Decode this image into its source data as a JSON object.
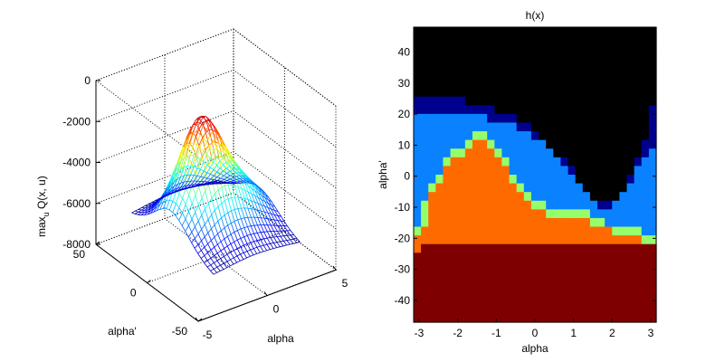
{
  "chart_data": [
    {
      "type": "surface3d",
      "zlabel_main": "max",
      "zlabel_sub": "u",
      "zlabel_tail": " Q(x, u)",
      "xlabel": "alpha",
      "ylabel": "alpha'",
      "xlim": [
        -5,
        5
      ],
      "ylim": [
        -50,
        50
      ],
      "zlim": [
        -8000,
        0
      ],
      "x_ticks": [
        "-5",
        "0",
        "5"
      ],
      "y_ticks": [
        "-50",
        "0",
        "50"
      ],
      "z_ticks": [
        "0",
        "-2000",
        "-4000",
        "-6000",
        "-8000"
      ],
      "x_tick_values": [
        -5,
        0,
        5
      ],
      "y_tick_values": [
        -50,
        0,
        50
      ],
      "z_tick_values": [
        0,
        -2000,
        -4000,
        -6000,
        -8000
      ],
      "x_range": [
        -3.14,
        3.14
      ],
      "y_range": [
        -40,
        40
      ],
      "surface_peak": -800,
      "surface_min": -6700,
      "grid_size": 27,
      "colormap": "jet"
    },
    {
      "type": "heatmap",
      "title": "h(x)",
      "xlabel": "alpha",
      "ylabel": "alpha'",
      "xlim": [
        -3.14,
        3.14
      ],
      "ylim": [
        -47,
        48
      ],
      "x_ticks": [
        "-3",
        "-2",
        "-1",
        "0",
        "1",
        "2",
        "3"
      ],
      "y_ticks": [
        "40",
        "30",
        "20",
        "10",
        "0",
        "-10",
        "-20",
        "-30",
        "-40"
      ],
      "x_tick_values": [
        -3,
        -2,
        -1,
        0,
        1,
        2,
        3
      ],
      "y_tick_values": [
        40,
        30,
        20,
        10,
        0,
        -10,
        -20,
        -30,
        -40
      ],
      "colors": [
        "#7f0000",
        "#ff6a00",
        "#96fe6a",
        "#0a82ff",
        "#00008f"
      ],
      "columns": 33,
      "rows": 34,
      "boundaries": [
        [
          -24,
          -21,
          -22,
          -22,
          -22,
          -22,
          -22,
          -22,
          -22,
          -22,
          -22,
          -22,
          -22,
          -22,
          -22,
          -22,
          -22,
          -22,
          -22,
          -22,
          -22,
          -22,
          -22,
          -22,
          -22,
          -22,
          -22,
          -22,
          -22,
          -22,
          -22,
          -22,
          -22
        ],
        [
          -20,
          -15,
          -6,
          -2,
          2,
          5,
          7,
          9,
          11,
          11,
          9,
          6,
          2,
          -3,
          -6,
          -8,
          -10,
          -12,
          -14,
          -14,
          -14,
          -14,
          -14,
          -14,
          -16,
          -16,
          -17,
          -18,
          -18,
          -19,
          -20,
          -22,
          -22
        ],
        [
          -15,
          -9,
          -3,
          1,
          5,
          8,
          10,
          12,
          14,
          15,
          13,
          10,
          6,
          1,
          -2,
          -5,
          -7,
          -9,
          -11,
          -12,
          -12,
          -12,
          -12,
          -12,
          -13,
          -14,
          -15,
          -16,
          -16,
          -16,
          -17,
          -18,
          -18
        ],
        [
          21,
          21,
          21,
          21,
          21,
          21,
          21,
          20,
          19,
          19,
          18,
          18,
          17,
          16,
          15,
          14,
          13,
          11,
          9,
          6,
          3,
          0,
          -2,
          -5,
          -8,
          -10,
          -10,
          -8,
          -5,
          -2,
          2,
          5,
          8
        ],
        [
          27,
          27,
          27,
          26,
          26,
          25,
          25,
          24,
          23,
          23,
          22,
          21,
          20,
          19,
          18,
          16,
          14,
          12,
          10,
          7,
          5,
          2,
          -1,
          -4,
          -7,
          -9,
          -9,
          -7,
          -4,
          0,
          5,
          12,
          24
        ]
      ]
    }
  ]
}
